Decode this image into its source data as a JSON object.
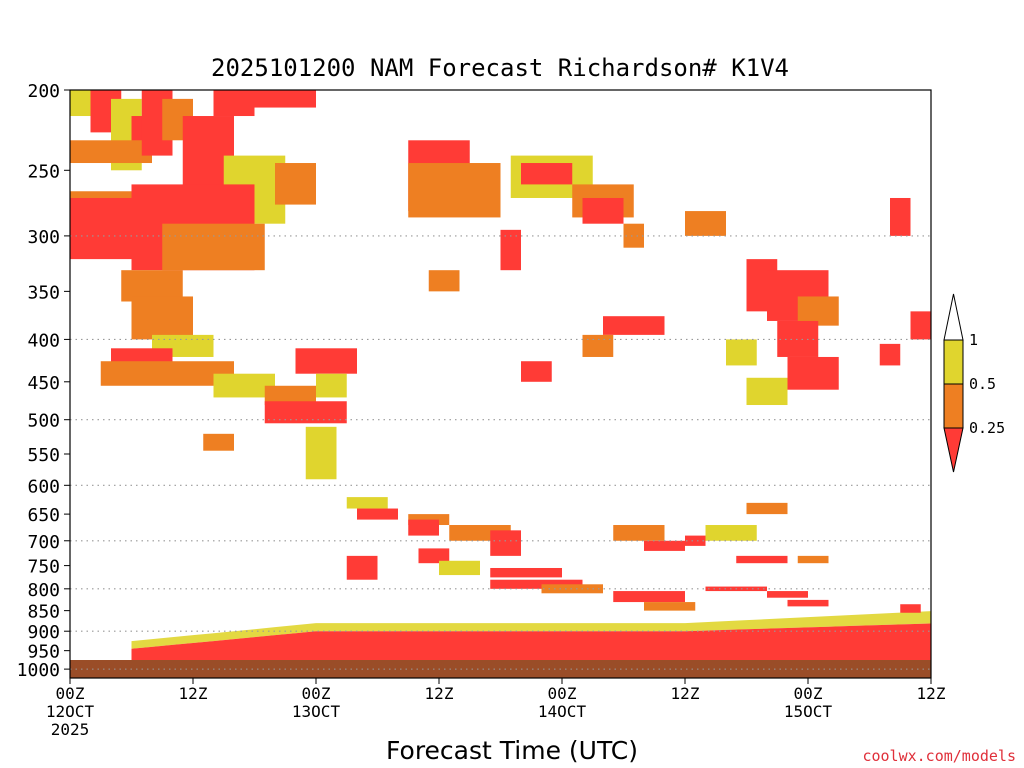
{
  "title": "2025101200 NAM Forecast Richardson# K1V4",
  "xlabel": "Forecast Time (UTC)",
  "credit": "coolwx.com/models",
  "chart_data": {
    "type": "heatmap",
    "title": "2025101200 NAM Forecast Richardson# K1V4",
    "xlabel": "Forecast Time (UTC)",
    "ylabel": "",
    "y_axis": {
      "scale": "pressure (log, inverted)",
      "range": [
        200,
        1025
      ],
      "ticks": [
        200,
        250,
        300,
        350,
        400,
        450,
        500,
        550,
        600,
        650,
        700,
        750,
        800,
        850,
        900,
        950,
        1000
      ],
      "dotted_gridlines_at": [
        300,
        400,
        500,
        600,
        700,
        800,
        900,
        1000
      ]
    },
    "x_axis": {
      "range_hours": [
        0,
        84
      ],
      "ticks": [
        {
          "hour": 0,
          "label": [
            "00Z",
            "12OCT",
            "2025"
          ]
        },
        {
          "hour": 12,
          "label": [
            "12Z"
          ]
        },
        {
          "hour": 24,
          "label": [
            "00Z",
            "13OCT"
          ]
        },
        {
          "hour": 36,
          "label": [
            "12Z"
          ]
        },
        {
          "hour": 48,
          "label": [
            "00Z",
            "14OCT"
          ]
        },
        {
          "hour": 60,
          "label": [
            "12Z"
          ]
        },
        {
          "hour": 72,
          "label": [
            "00Z",
            "15OCT"
          ]
        },
        {
          "hour": 84,
          "label": [
            "12Z"
          ]
        }
      ]
    },
    "legend": {
      "placement": "right",
      "labels": [
        "1",
        "0.5",
        "0.25"
      ],
      "classes": [
        {
          "range": "> 1",
          "color": "#ffffff"
        },
        {
          "range": "0.5 - 1",
          "color": "#e0d52e"
        },
        {
          "range": "0.25 - 0.5",
          "color": "#ee7f22"
        },
        {
          "range": "< 0.25",
          "color": "#ff3b36"
        }
      ]
    },
    "ground_color": "#9a4d28",
    "ground_pressure_range": [
      975,
      1025
    ],
    "colors": {
      "Y": "#e0d52e",
      "O": "#ee7f22",
      "R": "#ff3b36"
    },
    "regions": [
      {
        "x": [
          0,
          3
        ],
        "p": [
          200,
          215
        ],
        "v": "Y"
      },
      {
        "x": [
          2,
          5
        ],
        "p": [
          200,
          225
        ],
        "v": "R"
      },
      {
        "x": [
          4,
          7
        ],
        "p": [
          205,
          250
        ],
        "v": "Y"
      },
      {
        "x": [
          6,
          8
        ],
        "p": [
          215,
          235
        ],
        "v": "R"
      },
      {
        "x": [
          0,
          8
        ],
        "p": [
          230,
          245
        ],
        "v": "O"
      },
      {
        "x": [
          7,
          10
        ],
        "p": [
          200,
          240
        ],
        "v": "R"
      },
      {
        "x": [
          9,
          12
        ],
        "p": [
          205,
          230
        ],
        "v": "O"
      },
      {
        "x": [
          11,
          16
        ],
        "p": [
          215,
          270
        ],
        "v": "R"
      },
      {
        "x": [
          14,
          18
        ],
        "p": [
          200,
          215
        ],
        "v": "R"
      },
      {
        "x": [
          18,
          24
        ],
        "p": [
          200,
          210
        ],
        "v": "R"
      },
      {
        "x": [
          15,
          21
        ],
        "p": [
          240,
          290
        ],
        "v": "Y"
      },
      {
        "x": [
          20,
          24
        ],
        "p": [
          245,
          275
        ],
        "v": "O"
      },
      {
        "x": [
          0,
          10
        ],
        "p": [
          265,
          295
        ],
        "v": "O"
      },
      {
        "x": [
          0,
          8
        ],
        "p": [
          270,
          320
        ],
        "v": "R"
      },
      {
        "x": [
          6,
          18
        ],
        "p": [
          260,
          330
        ],
        "v": "R"
      },
      {
        "x": [
          9,
          19
        ],
        "p": [
          290,
          330
        ],
        "v": "O"
      },
      {
        "x": [
          5,
          11
        ],
        "p": [
          330,
          360
        ],
        "v": "O"
      },
      {
        "x": [
          6,
          12
        ],
        "p": [
          355,
          400
        ],
        "v": "O"
      },
      {
        "x": [
          8,
          14
        ],
        "p": [
          395,
          420
        ],
        "v": "Y"
      },
      {
        "x": [
          4,
          10
        ],
        "p": [
          410,
          430
        ],
        "v": "R"
      },
      {
        "x": [
          3,
          16
        ],
        "p": [
          425,
          455
        ],
        "v": "O"
      },
      {
        "x": [
          14,
          20
        ],
        "p": [
          440,
          470
        ],
        "v": "Y"
      },
      {
        "x": [
          19,
          24
        ],
        "p": [
          455,
          480
        ],
        "v": "O"
      },
      {
        "x": [
          19,
          27
        ],
        "p": [
          475,
          505
        ],
        "v": "R"
      },
      {
        "x": [
          22,
          28
        ],
        "p": [
          410,
          440
        ],
        "v": "R"
      },
      {
        "x": [
          24,
          27
        ],
        "p": [
          440,
          470
        ],
        "v": "Y"
      },
      {
        "x": [
          13,
          16
        ],
        "p": [
          520,
          545
        ],
        "v": "O"
      },
      {
        "x": [
          23,
          26
        ],
        "p": [
          510,
          590
        ],
        "v": "Y"
      },
      {
        "x": [
          33,
          39
        ],
        "p": [
          230,
          280
        ],
        "v": "R"
      },
      {
        "x": [
          33,
          42
        ],
        "p": [
          245,
          285
        ],
        "v": "O"
      },
      {
        "x": [
          43,
          51
        ],
        "p": [
          240,
          270
        ],
        "v": "Y"
      },
      {
        "x": [
          44,
          49
        ],
        "p": [
          245,
          260
        ],
        "v": "R"
      },
      {
        "x": [
          49,
          55
        ],
        "p": [
          260,
          285
        ],
        "v": "O"
      },
      {
        "x": [
          50,
          54
        ],
        "p": [
          270,
          290
        ],
        "v": "R"
      },
      {
        "x": [
          54,
          56
        ],
        "p": [
          290,
          310
        ],
        "v": "O"
      },
      {
        "x": [
          42,
          44
        ],
        "p": [
          295,
          330
        ],
        "v": "R"
      },
      {
        "x": [
          35,
          38
        ],
        "p": [
          330,
          350
        ],
        "v": "O"
      },
      {
        "x": [
          52,
          58
        ],
        "p": [
          375,
          395
        ],
        "v": "R"
      },
      {
        "x": [
          50,
          53
        ],
        "p": [
          395,
          420
        ],
        "v": "O"
      },
      {
        "x": [
          44,
          47
        ],
        "p": [
          425,
          450
        ],
        "v": "R"
      },
      {
        "x": [
          60,
          64
        ],
        "p": [
          280,
          300
        ],
        "v": "O"
      },
      {
        "x": [
          66,
          69
        ],
        "p": [
          320,
          370
        ],
        "v": "R"
      },
      {
        "x": [
          68,
          74
        ],
        "p": [
          330,
          380
        ],
        "v": "R"
      },
      {
        "x": [
          71,
          75
        ],
        "p": [
          355,
          385
        ],
        "v": "O"
      },
      {
        "x": [
          69,
          73
        ],
        "p": [
          380,
          420
        ],
        "v": "R"
      },
      {
        "x": [
          70,
          75
        ],
        "p": [
          420,
          460
        ],
        "v": "R"
      },
      {
        "x": [
          66,
          70
        ],
        "p": [
          445,
          480
        ],
        "v": "Y"
      },
      {
        "x": [
          64,
          67
        ],
        "p": [
          400,
          430
        ],
        "v": "Y"
      },
      {
        "x": [
          80,
          82
        ],
        "p": [
          270,
          300
        ],
        "v": "R"
      },
      {
        "x": [
          82,
          84
        ],
        "p": [
          370,
          400
        ],
        "v": "R"
      },
      {
        "x": [
          79,
          81
        ],
        "p": [
          405,
          430
        ],
        "v": "R"
      },
      {
        "x": [
          27,
          31
        ],
        "p": [
          620,
          640
        ],
        "v": "Y"
      },
      {
        "x": [
          28,
          32
        ],
        "p": [
          640,
          660
        ],
        "v": "R"
      },
      {
        "x": [
          33,
          37
        ],
        "p": [
          650,
          670
        ],
        "v": "O"
      },
      {
        "x": [
          33,
          36
        ],
        "p": [
          660,
          690
        ],
        "v": "R"
      },
      {
        "x": [
          37,
          43
        ],
        "p": [
          670,
          700
        ],
        "v": "O"
      },
      {
        "x": [
          41,
          44
        ],
        "p": [
          680,
          730
        ],
        "v": "R"
      },
      {
        "x": [
          34,
          37
        ],
        "p": [
          715,
          745
        ],
        "v": "R"
      },
      {
        "x": [
          27,
          30
        ],
        "p": [
          730,
          780
        ],
        "v": "R"
      },
      {
        "x": [
          36,
          40
        ],
        "p": [
          740,
          770
        ],
        "v": "Y"
      },
      {
        "x": [
          41,
          48
        ],
        "p": [
          755,
          775
        ],
        "v": "R"
      },
      {
        "x": [
          41,
          50
        ],
        "p": [
          780,
          800
        ],
        "v": "R"
      },
      {
        "x": [
          46,
          52
        ],
        "p": [
          790,
          810
        ],
        "v": "O"
      },
      {
        "x": [
          53,
          60
        ],
        "p": [
          805,
          830
        ],
        "v": "R"
      },
      {
        "x": [
          56,
          61
        ],
        "p": [
          830,
          850
        ],
        "v": "O"
      },
      {
        "x": [
          53,
          58
        ],
        "p": [
          670,
          700
        ],
        "v": "O"
      },
      {
        "x": [
          56,
          60
        ],
        "p": [
          700,
          720
        ],
        "v": "R"
      },
      {
        "x": [
          62,
          67
        ],
        "p": [
          670,
          700
        ],
        "v": "Y"
      },
      {
        "x": [
          65,
          70
        ],
        "p": [
          730,
          745
        ],
        "v": "R"
      },
      {
        "x": [
          71,
          74
        ],
        "p": [
          730,
          745
        ],
        "v": "O"
      },
      {
        "x": [
          66,
          70
        ],
        "p": [
          630,
          650
        ],
        "v": "O"
      },
      {
        "x": [
          60,
          62
        ],
        "p": [
          690,
          710
        ],
        "v": "R"
      },
      {
        "x": [
          62,
          68
        ],
        "p": [
          795,
          805
        ],
        "v": "R"
      },
      {
        "x": [
          68,
          72
        ],
        "p": [
          805,
          820
        ],
        "v": "R"
      },
      {
        "x": [
          70,
          74
        ],
        "p": [
          825,
          840
        ],
        "v": "R"
      },
      {
        "x": [
          81,
          83
        ],
        "p": [
          835,
          855
        ],
        "v": "R"
      }
    ]
  }
}
